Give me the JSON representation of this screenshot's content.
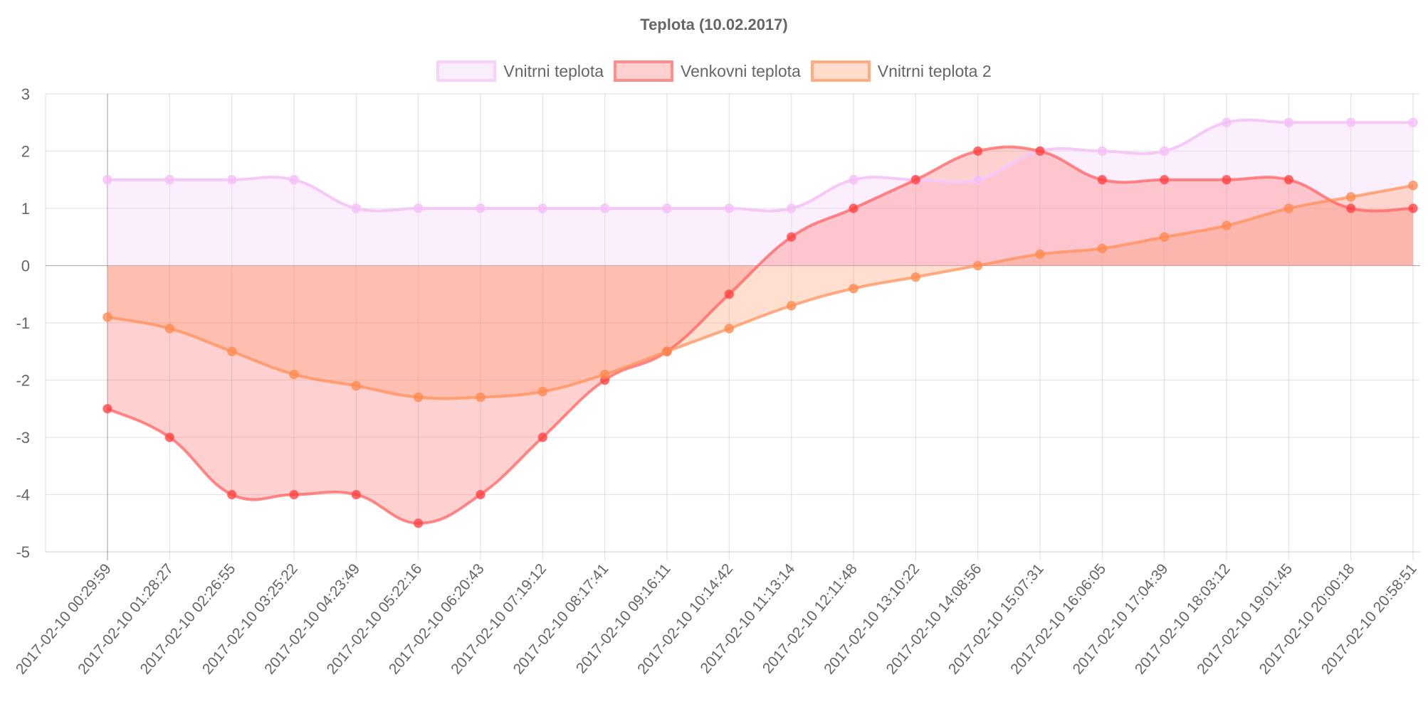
{
  "chart_data": {
    "type": "line",
    "title": "Teplota (10.02.2017)",
    "xlabel": "",
    "ylabel": "",
    "ylim": [
      -5,
      3
    ],
    "yticks": [
      "3",
      "2",
      "1",
      "0",
      "-1",
      "-2",
      "-3",
      "-4",
      "-5"
    ],
    "grid": true,
    "legend_position": "top",
    "categories": [
      "2017-02-10 00:29:59",
      "2017-02-10 01:28:27",
      "2017-02-10 02:26:55",
      "2017-02-10 03:25:22",
      "2017-02-10 04:23:49",
      "2017-02-10 05:22:16",
      "2017-02-10 06:20:43",
      "2017-02-10 07:19:12",
      "2017-02-10 08:17:41",
      "2017-02-10 09:16:11",
      "2017-02-10 10:14:42",
      "2017-02-10 11:13:14",
      "2017-02-10 12:11:48",
      "2017-02-10 13:10:22",
      "2017-02-10 14:08:56",
      "2017-02-10 15:07:31",
      "2017-02-10 16:06:05",
      "2017-02-10 17:04:39",
      "2017-02-10 18:03:12",
      "2017-02-10 19:01:45",
      "2017-02-10 20:00:18",
      "2017-02-10 20:58:51"
    ],
    "series": [
      {
        "name": "Vnitrni teplota",
        "stroke": "#f5c8f7",
        "fill": "rgba(247,215,250,0.4)",
        "point": "#f3bdf6",
        "values": [
          1.5,
          1.5,
          1.5,
          1.5,
          1,
          1,
          1,
          1,
          1,
          1,
          1,
          1,
          1.5,
          1.5,
          1.5,
          2,
          2,
          2,
          2.5,
          2.5,
          2.5,
          2.5
        ]
      },
      {
        "name": "Venkovni teplota",
        "stroke": "rgba(255,90,90,0.7)",
        "fill": "rgba(255,99,99,0.3)",
        "point": "#ff3b3b",
        "values": [
          -2.5,
          -3,
          -4,
          -4,
          -4,
          -4.5,
          -4,
          -3,
          -2,
          -1.5,
          -0.5,
          0.5,
          1,
          1.5,
          2,
          2,
          1.5,
          1.5,
          1.5,
          1.5,
          1,
          1
        ]
      },
      {
        "name": "Vnitrni teplota 2",
        "stroke": "rgba(255,140,80,0.7)",
        "fill": "rgba(255,150,100,0.3)",
        "point": "#ff8a50",
        "values": [
          -0.9,
          -1.1,
          -1.5,
          -1.9,
          -2.1,
          -2.3,
          -2.3,
          -2.2,
          -1.9,
          -1.5,
          -1.1,
          -0.7,
          -0.4,
          -0.2,
          0,
          0.2,
          0.3,
          0.5,
          0.7,
          1,
          1.2,
          1.4
        ]
      }
    ]
  }
}
